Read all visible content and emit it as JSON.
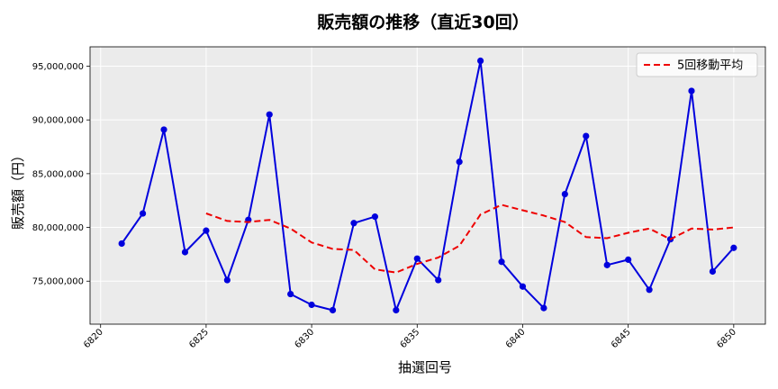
{
  "chart_data": {
    "type": "line",
    "title": "販売額の推移（直近30回）",
    "xlabel": "抽選回号",
    "ylabel": "販売額（円）",
    "xlim": [
      6819.5,
      6851.5
    ],
    "ylim": [
      71000000,
      96800000
    ],
    "x_ticks": [
      6820,
      6825,
      6830,
      6835,
      6840,
      6845,
      6850
    ],
    "y_ticks": [
      75000000,
      80000000,
      85000000,
      90000000,
      95000000
    ],
    "y_tick_labels": [
      "75,000,000",
      "80,000,000",
      "85,000,000",
      "90,000,000",
      "95,000,000"
    ],
    "grid": true,
    "legend_position": "top-right",
    "series": [
      {
        "name": "",
        "color": "#0000dd",
        "style": "solid-with-markers",
        "x": [
          6821,
          6822,
          6823,
          6824,
          6825,
          6826,
          6827,
          6828,
          6829,
          6830,
          6831,
          6832,
          6833,
          6834,
          6835,
          6836,
          6837,
          6838,
          6839,
          6840,
          6841,
          6842,
          6843,
          6844,
          6845,
          6846,
          6847,
          6848,
          6849,
          6850
        ],
        "y": [
          78500000,
          81300000,
          89100000,
          77700000,
          79700000,
          75100000,
          80700000,
          90500000,
          73800000,
          72800000,
          72300000,
          80400000,
          81000000,
          72300000,
          77100000,
          75100000,
          86100000,
          95500000,
          76800000,
          74500000,
          72500000,
          83100000,
          88500000,
          76500000,
          77000000,
          74200000,
          78900000,
          92700000,
          75900000,
          78100000
        ]
      },
      {
        "name": "5回移動平均",
        "color": "#ee0000",
        "style": "dashed",
        "x": [
          6825,
          6826,
          6827,
          6828,
          6829,
          6830,
          6831,
          6832,
          6833,
          6834,
          6835,
          6836,
          6837,
          6838,
          6839,
          6840,
          6841,
          6842,
          6843,
          6844,
          6845,
          6846,
          6847,
          6848,
          6849,
          6850
        ],
        "y": [
          81300000,
          80600000,
          80500000,
          80700000,
          79900000,
          78600000,
          78000000,
          77900000,
          76100000,
          75800000,
          76600000,
          77200000,
          78300000,
          81200000,
          82100000,
          81600000,
          81100000,
          80500000,
          79100000,
          79000000,
          79500000,
          79900000,
          78900000,
          79900000,
          79800000,
          80000000
        ]
      }
    ]
  }
}
